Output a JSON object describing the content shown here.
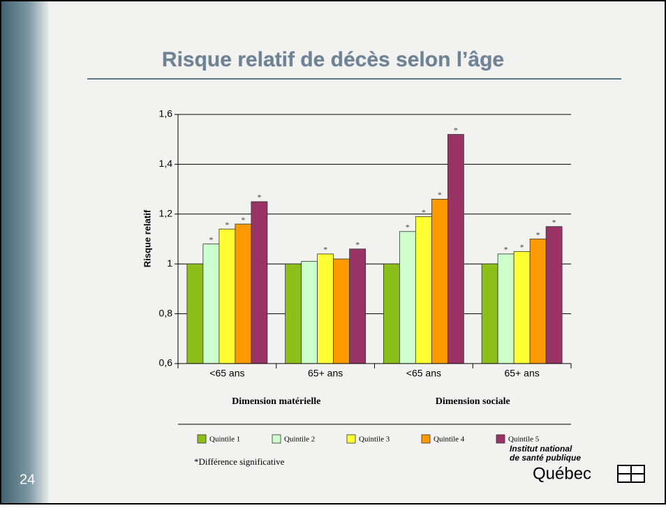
{
  "slide_number": "24",
  "footnote": "*Différence significative",
  "logo": {
    "line1": "Institut national",
    "line2": "de santé publique",
    "line3": "Québec"
  },
  "chart_data": {
    "type": "bar",
    "title": "Risque relatif de décès selon l’âge",
    "y_label": "Risque relatif",
    "categories": [
      "<65 ans",
      "65+ ans",
      "<65 ans",
      "65+ ans"
    ],
    "groups": [
      "Dimension matérielle",
      "Dimension sociale"
    ],
    "ylim": [
      0.6,
      1.6
    ],
    "yticks": [
      {
        "value": 0.6,
        "label": "0,6"
      },
      {
        "value": 0.8,
        "label": "0,8"
      },
      1,
      {
        "value": 1.2,
        "label": "1,2"
      },
      {
        "value": 1.4,
        "label": "1,4"
      },
      {
        "value": 1.6,
        "label": "1,6"
      }
    ],
    "grid": true,
    "series": [
      {
        "name": "Quintile 1",
        "color": "#8cbf1a",
        "values": [
          1,
          1,
          1,
          1
        ],
        "value_labels": [
          null,
          null,
          null,
          null
        ]
      },
      {
        "name": "Quintile 2",
        "color": "#ccffcc",
        "values": [
          1.08,
          1.01,
          1.13,
          1.04
        ],
        "value_labels": [
          "*",
          null,
          "*",
          "*"
        ]
      },
      {
        "name": "Quintile 3",
        "color": "#ffff33",
        "values": [
          1.14,
          1.04,
          1.19,
          1.05
        ],
        "value_labels": [
          "*",
          "*",
          "*",
          "*"
        ]
      },
      {
        "name": "Quintile 4",
        "color": "#ff9900",
        "values": [
          1.16,
          1.02,
          1.26,
          1.1
        ],
        "value_labels": [
          "*",
          null,
          "*",
          "*"
        ]
      },
      {
        "name": "Quintile 5",
        "color": "#993366",
        "values": [
          1.25,
          1.06,
          1.52,
          1.15
        ],
        "value_labels": [
          "*",
          "*",
          "*",
          "*"
        ]
      }
    ]
  }
}
